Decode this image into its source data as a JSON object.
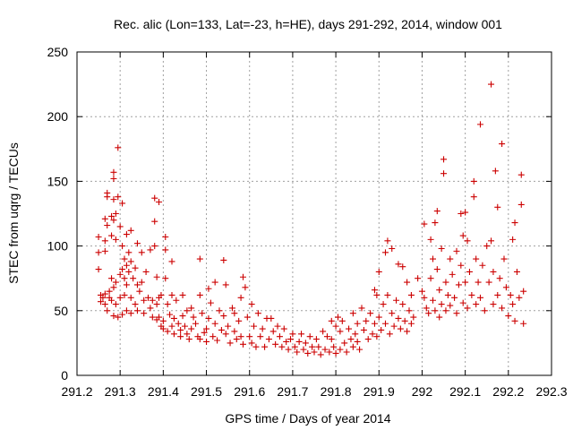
{
  "chart_data": {
    "type": "scatter",
    "title": "Rec. alic (Lon=133, Lat=-23, h=HE), days 291-292, 2014, window 001",
    "xlabel": "GPS time / Days of year 2014",
    "ylabel": "STEC from uqrg / TECUs",
    "xlim": [
      291.2,
      292.3
    ],
    "ylim": [
      0,
      250
    ],
    "xticks": [
      "291.2",
      "291.3",
      "291.4",
      "291.5",
      "291.6",
      "291.7",
      "291.8",
      "291.9",
      "292",
      "292.1",
      "292.2",
      "292.3"
    ],
    "yticks": [
      "0",
      "50",
      "100",
      "150",
      "200",
      "250"
    ],
    "grid": true,
    "marker": "+",
    "color": "#cc0000",
    "series": [
      {
        "values": [
          [
            291.25,
            107
          ],
          [
            291.25,
            95
          ],
          [
            291.25,
            82
          ],
          [
            291.255,
            62
          ],
          [
            291.255,
            57
          ],
          [
            291.26,
            60
          ],
          [
            291.265,
            121
          ],
          [
            291.265,
            104
          ],
          [
            291.265,
            96
          ],
          [
            291.265,
            63
          ],
          [
            291.265,
            55
          ],
          [
            291.27,
            141
          ],
          [
            291.27,
            138
          ],
          [
            291.27,
            116
          ],
          [
            291.27,
            50
          ],
          [
            291.275,
            65
          ],
          [
            291.275,
            60
          ],
          [
            291.28,
            123
          ],
          [
            291.28,
            108
          ],
          [
            291.28,
            75
          ],
          [
            291.28,
            58
          ],
          [
            291.285,
            157
          ],
          [
            291.285,
            152
          ],
          [
            291.285,
            136
          ],
          [
            291.285,
            120
          ],
          [
            291.285,
            68
          ],
          [
            291.285,
            46
          ],
          [
            291.29,
            125
          ],
          [
            291.29,
            105
          ],
          [
            291.29,
            72
          ],
          [
            291.29,
            55
          ],
          [
            291.295,
            176
          ],
          [
            291.295,
            138
          ],
          [
            291.295,
            45
          ],
          [
            291.3,
            115
          ],
          [
            291.3,
            78
          ],
          [
            291.3,
            60
          ],
          [
            291.305,
            133
          ],
          [
            291.305,
            100
          ],
          [
            291.305,
            82
          ],
          [
            291.305,
            47
          ],
          [
            291.31,
            90
          ],
          [
            291.31,
            75
          ],
          [
            291.31,
            62
          ],
          [
            291.315,
            109
          ],
          [
            291.315,
            85
          ],
          [
            291.315,
            70
          ],
          [
            291.315,
            50
          ],
          [
            291.32,
            95
          ],
          [
            291.32,
            80
          ],
          [
            291.325,
            112
          ],
          [
            291.325,
            88
          ],
          [
            291.325,
            60
          ],
          [
            291.325,
            48
          ],
          [
            291.33,
            75
          ],
          [
            291.335,
            83
          ],
          [
            291.335,
            55
          ],
          [
            291.34,
            102
          ],
          [
            291.34,
            70
          ],
          [
            291.34,
            50
          ],
          [
            291.345,
            65
          ],
          [
            291.35,
            95
          ],
          [
            291.35,
            72
          ],
          [
            291.355,
            58
          ],
          [
            291.355,
            48
          ],
          [
            291.36,
            80
          ],
          [
            291.365,
            60
          ],
          [
            291.37,
            97
          ],
          [
            291.37,
            52
          ],
          [
            291.375,
            58
          ],
          [
            291.375,
            45
          ],
          [
            291.38,
            137
          ],
          [
            291.38,
            119
          ],
          [
            291.38,
            100
          ],
          [
            291.385,
            76
          ],
          [
            291.385,
            55
          ],
          [
            291.385,
            43
          ],
          [
            291.39,
            134
          ],
          [
            291.39,
            60
          ],
          [
            291.39,
            45
          ],
          [
            291.395,
            62
          ],
          [
            291.395,
            38
          ],
          [
            291.4,
            42
          ],
          [
            291.4,
            36
          ],
          [
            291.405,
            107
          ],
          [
            291.405,
            97
          ],
          [
            291.405,
            75
          ],
          [
            291.41,
            55
          ],
          [
            291.41,
            34
          ],
          [
            291.415,
            47
          ],
          [
            291.42,
            88
          ],
          [
            291.42,
            62
          ],
          [
            291.42,
            38
          ],
          [
            291.425,
            44
          ],
          [
            291.425,
            32
          ],
          [
            291.43,
            58
          ],
          [
            291.435,
            40
          ],
          [
            291.44,
            35
          ],
          [
            291.44,
            30
          ],
          [
            291.445,
            62
          ],
          [
            291.445,
            46
          ],
          [
            291.45,
            38
          ],
          [
            291.455,
            50
          ],
          [
            291.455,
            32
          ],
          [
            291.46,
            28
          ],
          [
            291.465,
            52
          ],
          [
            291.465,
            36
          ],
          [
            291.47,
            45
          ],
          [
            291.475,
            40
          ],
          [
            291.48,
            30
          ],
          [
            291.485,
            90
          ],
          [
            291.485,
            62
          ],
          [
            291.485,
            28
          ],
          [
            291.49,
            48
          ],
          [
            291.495,
            33
          ],
          [
            291.5,
            36
          ],
          [
            291.5,
            26
          ],
          [
            291.505,
            67
          ],
          [
            291.505,
            44
          ],
          [
            291.51,
            56
          ],
          [
            291.515,
            30
          ],
          [
            291.52,
            72
          ],
          [
            291.52,
            40
          ],
          [
            291.525,
            27
          ],
          [
            291.53,
            50
          ],
          [
            291.535,
            35
          ],
          [
            291.54,
            89
          ],
          [
            291.54,
            46
          ],
          [
            291.545,
            70
          ],
          [
            291.545,
            32
          ],
          [
            291.55,
            38
          ],
          [
            291.555,
            25
          ],
          [
            291.56,
            52
          ],
          [
            291.565,
            48
          ],
          [
            291.565,
            34
          ],
          [
            291.57,
            28
          ],
          [
            291.575,
            42
          ],
          [
            291.58,
            60
          ],
          [
            291.58,
            30
          ],
          [
            291.585,
            76
          ],
          [
            291.585,
            24
          ],
          [
            291.59,
            68
          ],
          [
            291.595,
            45
          ],
          [
            291.6,
            30
          ],
          [
            291.605,
            55
          ],
          [
            291.605,
            25
          ],
          [
            291.61,
            38
          ],
          [
            291.615,
            22
          ],
          [
            291.62,
            48
          ],
          [
            291.625,
            30
          ],
          [
            291.63,
            36
          ],
          [
            291.635,
            22
          ],
          [
            291.64,
            44
          ],
          [
            291.645,
            28
          ],
          [
            291.65,
            44
          ],
          [
            291.655,
            34
          ],
          [
            291.66,
            24
          ],
          [
            291.665,
            38
          ],
          [
            291.67,
            30
          ],
          [
            291.675,
            22
          ],
          [
            291.68,
            36
          ],
          [
            291.685,
            26
          ],
          [
            291.69,
            20
          ],
          [
            291.695,
            28
          ],
          [
            291.7,
            32
          ],
          [
            291.705,
            22
          ],
          [
            291.71,
            18
          ],
          [
            291.715,
            26
          ],
          [
            291.72,
            32
          ],
          [
            291.725,
            20
          ],
          [
            291.73,
            25
          ],
          [
            291.735,
            17
          ],
          [
            291.74,
            30
          ],
          [
            291.745,
            22
          ],
          [
            291.75,
            18
          ],
          [
            291.755,
            28
          ],
          [
            291.76,
            22
          ],
          [
            291.765,
            16
          ],
          [
            291.77,
            34
          ],
          [
            291.775,
            20
          ],
          [
            291.78,
            30
          ],
          [
            291.785,
            18
          ],
          [
            291.79,
            42
          ],
          [
            291.79,
            28
          ],
          [
            291.795,
            22
          ],
          [
            291.8,
            38
          ],
          [
            291.8,
            17
          ],
          [
            291.805,
            45
          ],
          [
            291.81,
            34
          ],
          [
            291.81,
            20
          ],
          [
            291.815,
            42
          ],
          [
            291.82,
            25
          ],
          [
            291.825,
            18
          ],
          [
            291.83,
            36
          ],
          [
            291.835,
            28
          ],
          [
            291.84,
            48
          ],
          [
            291.84,
            22
          ],
          [
            291.845,
            32
          ],
          [
            291.85,
            40
          ],
          [
            291.85,
            26
          ],
          [
            291.855,
            20
          ],
          [
            291.86,
            52
          ],
          [
            291.865,
            35
          ],
          [
            291.87,
            42
          ],
          [
            291.875,
            28
          ],
          [
            291.88,
            48
          ],
          [
            291.885,
            32
          ],
          [
            291.89,
            66
          ],
          [
            291.89,
            40
          ],
          [
            291.895,
            62
          ],
          [
            291.895,
            30
          ],
          [
            291.9,
            80
          ],
          [
            291.9,
            45
          ],
          [
            291.905,
            35
          ],
          [
            291.91,
            55
          ],
          [
            291.915,
            95
          ],
          [
            291.915,
            40
          ],
          [
            291.92,
            104
          ],
          [
            291.92,
            62
          ],
          [
            291.925,
            32
          ],
          [
            291.93,
            98
          ],
          [
            291.93,
            48
          ],
          [
            291.935,
            38
          ],
          [
            291.94,
            58
          ],
          [
            291.945,
            86
          ],
          [
            291.945,
            44
          ],
          [
            291.95,
            36
          ],
          [
            291.955,
            84
          ],
          [
            291.955,
            55
          ],
          [
            291.96,
            42
          ],
          [
            291.965,
            72
          ],
          [
            291.965,
            34
          ],
          [
            291.97,
            50
          ],
          [
            291.975,
            62
          ],
          [
            291.975,
            40
          ],
          [
            291.98,
            45
          ],
          [
            291.99,
            75
          ],
          [
            292.0,
            65
          ],
          [
            292.005,
            117
          ],
          [
            292.005,
            60
          ],
          [
            292.01,
            52
          ],
          [
            292.015,
            48
          ],
          [
            292.02,
            105
          ],
          [
            292.02,
            75
          ],
          [
            292.025,
            90
          ],
          [
            292.025,
            58
          ],
          [
            292.03,
            118
          ],
          [
            292.03,
            50
          ],
          [
            292.035,
            127
          ],
          [
            292.035,
            82
          ],
          [
            292.04,
            66
          ],
          [
            292.04,
            45
          ],
          [
            292.045,
            98
          ],
          [
            292.045,
            55
          ],
          [
            292.05,
            167
          ],
          [
            292.05,
            156
          ],
          [
            292.055,
            72
          ],
          [
            292.055,
            50
          ],
          [
            292.06,
            62
          ],
          [
            292.065,
            90
          ],
          [
            292.065,
            54
          ],
          [
            292.07,
            78
          ],
          [
            292.075,
            60
          ],
          [
            292.08,
            96
          ],
          [
            292.08,
            48
          ],
          [
            292.085,
            70
          ],
          [
            292.09,
            125
          ],
          [
            292.09,
            85
          ],
          [
            292.095,
            108
          ],
          [
            292.095,
            56
          ],
          [
            292.1,
            126
          ],
          [
            292.1,
            72
          ],
          [
            292.105,
            104
          ],
          [
            292.105,
            52
          ],
          [
            292.11,
            80
          ],
          [
            292.115,
            62
          ],
          [
            292.12,
            150
          ],
          [
            292.12,
            138
          ],
          [
            292.125,
            90
          ],
          [
            292.125,
            55
          ],
          [
            292.13,
            72
          ],
          [
            292.135,
            194
          ],
          [
            292.135,
            60
          ],
          [
            292.14,
            85
          ],
          [
            292.145,
            50
          ],
          [
            292.15,
            100
          ],
          [
            292.155,
            72
          ],
          [
            292.16,
            225
          ],
          [
            292.16,
            104
          ],
          [
            292.165,
            80
          ],
          [
            292.165,
            55
          ],
          [
            292.17,
            158
          ],
          [
            292.175,
            130
          ],
          [
            292.175,
            62
          ],
          [
            292.18,
            75
          ],
          [
            292.185,
            179
          ],
          [
            292.185,
            52
          ],
          [
            292.19,
            90
          ],
          [
            292.195,
            68
          ],
          [
            292.2,
            46
          ],
          [
            292.205,
            62
          ],
          [
            292.21,
            105
          ],
          [
            292.21,
            55
          ],
          [
            292.215,
            118
          ],
          [
            292.215,
            42
          ],
          [
            292.22,
            80
          ],
          [
            292.225,
            60
          ],
          [
            292.23,
            155
          ],
          [
            292.23,
            132
          ],
          [
            292.235,
            65
          ],
          [
            292.235,
            40
          ]
        ]
      }
    ]
  }
}
